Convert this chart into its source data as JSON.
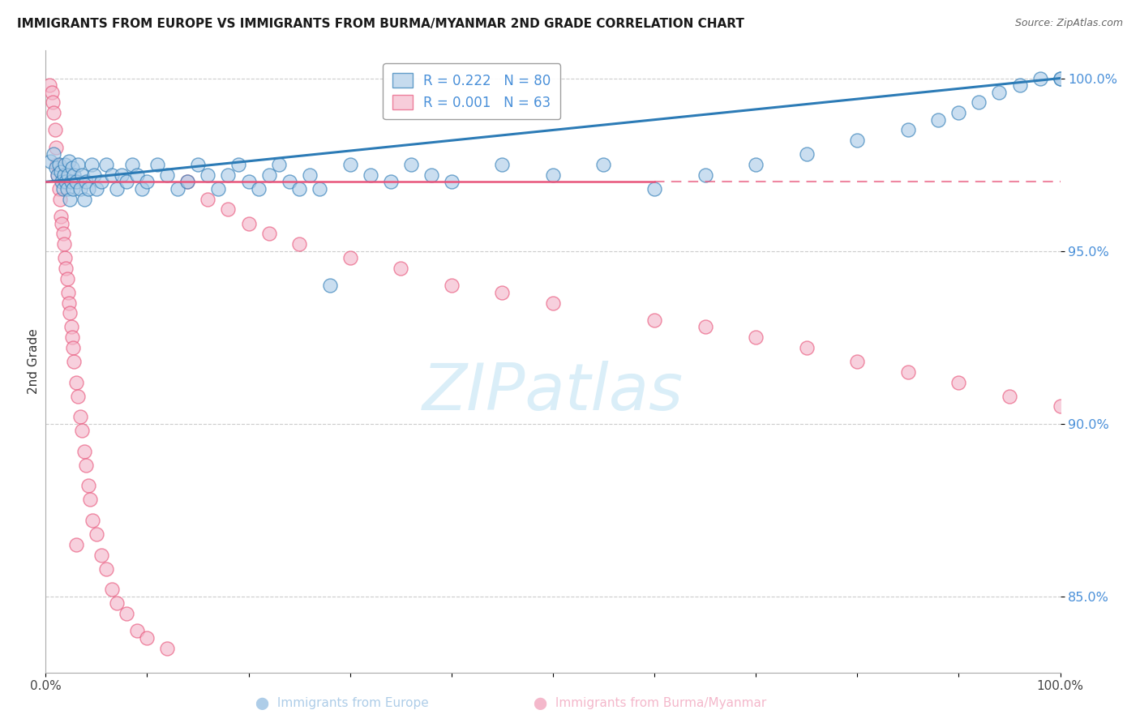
{
  "title": "IMMIGRANTS FROM EUROPE VS IMMIGRANTS FROM BURMA/MYANMAR 2ND GRADE CORRELATION CHART",
  "source": "Source: ZipAtlas.com",
  "ylabel": "2nd Grade",
  "legend_europe": "Immigrants from Europe",
  "legend_burma": "Immigrants from Burma/Myanmar",
  "r_europe": 0.222,
  "n_europe": 80,
  "r_burma": 0.001,
  "n_burma": 63,
  "color_europe": "#aecde8",
  "color_burma": "#f4b8cb",
  "trendline_europe": "#2c7bb6",
  "trendline_burma": "#e8547a",
  "watermark_color": "#daeef8",
  "xlim": [
    0.0,
    1.0
  ],
  "ylim": [
    0.828,
    1.008
  ],
  "yticks": [
    0.85,
    0.9,
    0.95,
    1.0
  ],
  "ytick_labels": [
    "85.0%",
    "90.0%",
    "95.0%",
    "100.0%"
  ],
  "xtick_labels": [
    "0.0%",
    "",
    "",
    "",
    "",
    "",
    "",
    "",
    "",
    "",
    "100.0%"
  ],
  "europe_x": [
    0.005,
    0.008,
    0.01,
    0.012,
    0.013,
    0.015,
    0.016,
    0.017,
    0.018,
    0.019,
    0.02,
    0.021,
    0.022,
    0.023,
    0.024,
    0.025,
    0.026,
    0.027,
    0.028,
    0.03,
    0.032,
    0.034,
    0.036,
    0.038,
    0.04,
    0.042,
    0.045,
    0.048,
    0.05,
    0.055,
    0.06,
    0.065,
    0.07,
    0.075,
    0.08,
    0.085,
    0.09,
    0.095,
    0.1,
    0.11,
    0.12,
    0.13,
    0.14,
    0.15,
    0.16,
    0.17,
    0.18,
    0.19,
    0.2,
    0.21,
    0.22,
    0.23,
    0.24,
    0.25,
    0.26,
    0.27,
    0.28,
    0.3,
    0.32,
    0.34,
    0.36,
    0.38,
    0.4,
    0.45,
    0.5,
    0.55,
    0.6,
    0.65,
    0.7,
    0.75,
    0.8,
    0.85,
    0.88,
    0.9,
    0.92,
    0.94,
    0.96,
    0.98,
    1.0,
    1.0
  ],
  "europe_y": [
    0.976,
    0.978,
    0.974,
    0.972,
    0.975,
    0.973,
    0.97,
    0.968,
    0.972,
    0.975,
    0.97,
    0.968,
    0.972,
    0.976,
    0.965,
    0.97,
    0.974,
    0.968,
    0.972,
    0.97,
    0.975,
    0.968,
    0.972,
    0.965,
    0.97,
    0.968,
    0.975,
    0.972,
    0.968,
    0.97,
    0.975,
    0.972,
    0.968,
    0.972,
    0.97,
    0.975,
    0.972,
    0.968,
    0.97,
    0.975,
    0.972,
    0.968,
    0.97,
    0.975,
    0.972,
    0.968,
    0.972,
    0.975,
    0.97,
    0.968,
    0.972,
    0.975,
    0.97,
    0.968,
    0.972,
    0.968,
    0.94,
    0.975,
    0.972,
    0.97,
    0.975,
    0.972,
    0.97,
    0.975,
    0.972,
    0.975,
    0.968,
    0.972,
    0.975,
    0.978,
    0.982,
    0.985,
    0.988,
    0.99,
    0.993,
    0.996,
    0.998,
    1.0,
    1.0,
    1.0
  ],
  "burma_x": [
    0.004,
    0.006,
    0.007,
    0.008,
    0.009,
    0.01,
    0.011,
    0.012,
    0.013,
    0.014,
    0.015,
    0.016,
    0.017,
    0.018,
    0.019,
    0.02,
    0.021,
    0.022,
    0.023,
    0.024,
    0.025,
    0.026,
    0.027,
    0.028,
    0.03,
    0.032,
    0.034,
    0.036,
    0.038,
    0.04,
    0.042,
    0.044,
    0.046,
    0.05,
    0.055,
    0.06,
    0.065,
    0.07,
    0.08,
    0.09,
    0.1,
    0.12,
    0.14,
    0.16,
    0.18,
    0.2,
    0.22,
    0.25,
    0.3,
    0.35,
    0.4,
    0.45,
    0.5,
    0.6,
    0.65,
    0.7,
    0.75,
    0.8,
    0.85,
    0.9,
    0.95,
    1.0,
    0.03
  ],
  "burma_y": [
    0.998,
    0.996,
    0.993,
    0.99,
    0.985,
    0.98,
    0.975,
    0.972,
    0.968,
    0.965,
    0.96,
    0.958,
    0.955,
    0.952,
    0.948,
    0.945,
    0.942,
    0.938,
    0.935,
    0.932,
    0.928,
    0.925,
    0.922,
    0.918,
    0.912,
    0.908,
    0.902,
    0.898,
    0.892,
    0.888,
    0.882,
    0.878,
    0.872,
    0.868,
    0.862,
    0.858,
    0.852,
    0.848,
    0.845,
    0.84,
    0.838,
    0.835,
    0.97,
    0.965,
    0.962,
    0.958,
    0.955,
    0.952,
    0.948,
    0.945,
    0.94,
    0.938,
    0.935,
    0.93,
    0.928,
    0.925,
    0.922,
    0.918,
    0.915,
    0.912,
    0.908,
    0.905,
    0.865
  ]
}
